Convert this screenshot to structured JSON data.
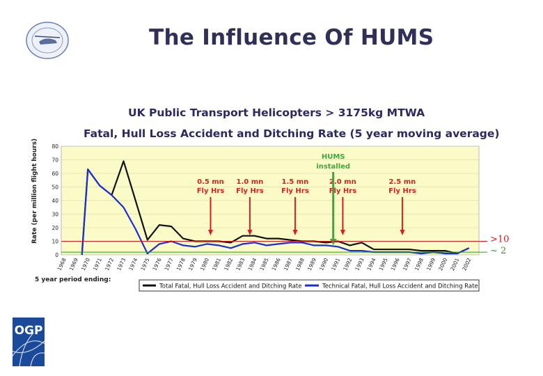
{
  "slide": {
    "title": "The Influence Of HUMS",
    "seal_text": "— 2006 — Society of Professional Helicopter Pilots"
  },
  "logo": {
    "text": "OGP"
  },
  "colors": {
    "title": "#2f2f5a",
    "plot_bg": "#fbfbc8",
    "total_series": "#111111",
    "technical_series": "#1c2fd6",
    "event_arrow": "#d42020",
    "hums_label": "#3aa83a",
    "ref_line_10": "#c81e1e",
    "ref_line_2": "#2a9a2a"
  },
  "chart_data": {
    "type": "line",
    "title": "UK Public Transport Helicopters > 3175kg MTWA",
    "subtitle": "Fatal, Hull Loss Accident and Ditching Rate (5 year moving average)",
    "ylabel": "Rate (per million flight hours)",
    "xlabel": "5 year period ending:",
    "ylim": [
      0,
      80
    ],
    "yticks": [
      "0",
      "10",
      "20",
      "30",
      "40",
      "50",
      "60",
      "70",
      "80"
    ],
    "x": [
      "1968",
      "1969",
      "1970",
      "1971",
      "1972",
      "1973",
      "1974",
      "1975",
      "1976",
      "1977",
      "1978",
      "1979",
      "1980",
      "1981",
      "1982",
      "1983",
      "1984",
      "1985",
      "1986",
      "1987",
      "1988",
      "1989",
      "1990",
      "1991",
      "1992",
      "1993",
      "1994",
      "1995",
      "1996",
      "1997",
      "1998",
      "1999",
      "2000",
      "2001",
      "2002"
    ],
    "series": [
      {
        "name": "Total Fatal, Hull Loss Accident and Ditching Rate",
        "color": "#111111",
        "points": [
          [
            1969.5,
            0
          ],
          [
            1970,
            63
          ],
          [
            1971,
            51
          ],
          [
            1972,
            44
          ],
          [
            1973,
            69
          ],
          [
            1974,
            40
          ],
          [
            1975,
            11
          ],
          [
            1976,
            22
          ],
          [
            1977,
            21
          ],
          [
            1978,
            12
          ],
          [
            1979,
            10
          ],
          [
            1980,
            10
          ],
          [
            1981,
            10
          ],
          [
            1982,
            9
          ],
          [
            1983,
            14
          ],
          [
            1984,
            14
          ],
          [
            1985,
            12
          ],
          [
            1986,
            12
          ],
          [
            1987,
            11
          ],
          [
            1988,
            10
          ],
          [
            1989,
            10
          ],
          [
            1990,
            9
          ],
          [
            1991,
            10
          ],
          [
            1992,
            7
          ],
          [
            1993,
            9
          ],
          [
            1994,
            4
          ],
          [
            1995,
            4
          ],
          [
            1996,
            4
          ],
          [
            1997,
            4
          ],
          [
            1998,
            3
          ],
          [
            1999,
            3
          ],
          [
            2000,
            3
          ],
          [
            2001,
            1
          ],
          [
            2002,
            5
          ]
        ]
      },
      {
        "name": "Technical Fatal, Hull Loss Accident and Ditching Rate",
        "color": "#1c2fd6",
        "points": [
          [
            1969.5,
            0
          ],
          [
            1970,
            63
          ],
          [
            1971,
            51
          ],
          [
            1972,
            44
          ],
          [
            1973,
            35
          ],
          [
            1974,
            19
          ],
          [
            1975,
            1
          ],
          [
            1976,
            8
          ],
          [
            1977,
            10
          ],
          [
            1978,
            7
          ],
          [
            1979,
            6
          ],
          [
            1980,
            8
          ],
          [
            1981,
            7
          ],
          [
            1982,
            5
          ],
          [
            1983,
            8
          ],
          [
            1984,
            9
          ],
          [
            1985,
            7
          ],
          [
            1986,
            8
          ],
          [
            1987,
            9
          ],
          [
            1988,
            9
          ],
          [
            1989,
            7
          ],
          [
            1990,
            7
          ],
          [
            1991,
            6
          ],
          [
            1992,
            3
          ],
          [
            1993,
            3
          ],
          [
            1994,
            2
          ],
          [
            1995,
            2
          ],
          [
            1996,
            2
          ],
          [
            1997,
            2
          ],
          [
            1998,
            1
          ],
          [
            1999,
            2
          ],
          [
            2000,
            1
          ],
          [
            2001,
            1
          ],
          [
            2002,
            5
          ]
        ]
      }
    ],
    "annotations": [
      {
        "line1": "0.5 mn",
        "line2": "Fly Hrs",
        "x": 1980.3,
        "color": "#d42020"
      },
      {
        "line1": "1.0 mn",
        "line2": "Fly Hrs",
        "x": 1983.6,
        "color": "#d42020"
      },
      {
        "line1": "1.5 mn",
        "line2": "Fly Hrs",
        "x": 1987.4,
        "color": "#d42020"
      },
      {
        "line1": "2.0 mn",
        "line2": "Fly Hrs",
        "x": 1991.4,
        "color": "#d42020"
      },
      {
        "line1": "2.5 mn",
        "line2": "Fly Hrs",
        "x": 1996.4,
        "color": "#d42020"
      }
    ],
    "hums": {
      "line1": "HUMS",
      "line2": "installed",
      "x": 1990.6,
      "color": "#3aa83a"
    },
    "reference_lines": [
      {
        "y": 10,
        "label": ">10",
        "color": "#c81e1e"
      },
      {
        "y": 2,
        "label": "~ 2",
        "color": "#2a9a2a"
      }
    ],
    "grid": true,
    "legend_position": "bottom"
  }
}
